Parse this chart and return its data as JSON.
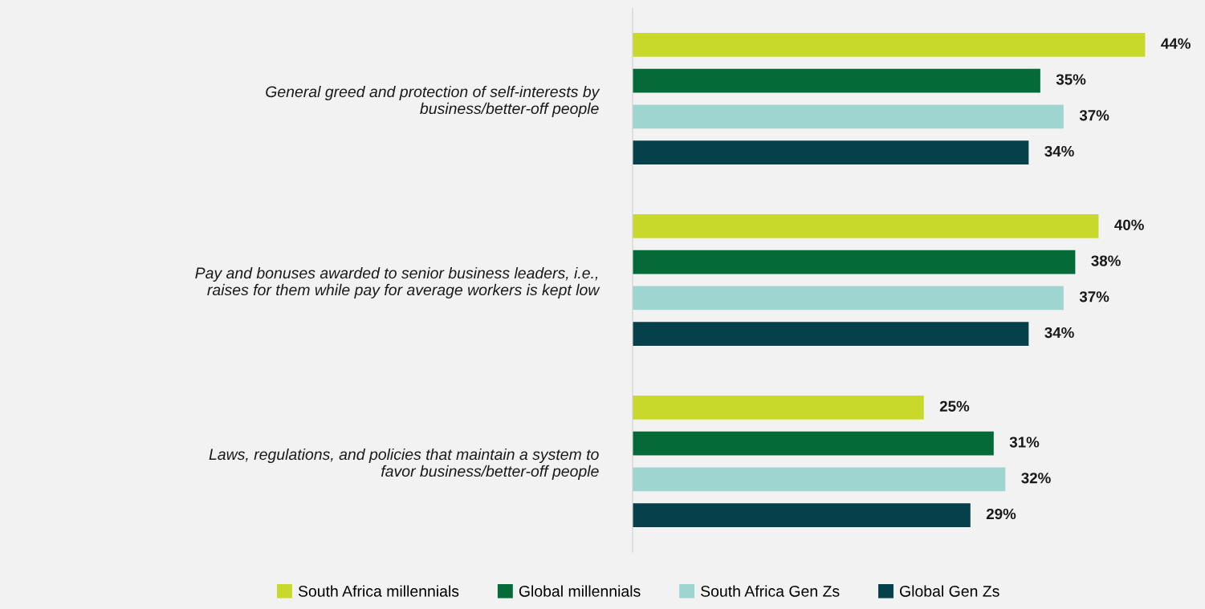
{
  "chart_data": {
    "type": "bar",
    "orientation": "horizontal",
    "categories": [
      "General greed and protection of self-interests by\nbusiness/better-off people",
      "Pay and bonuses awarded to senior business leaders, i.e.,\nraises for them while pay for average workers is kept low",
      "Laws, regulations, and policies that maintain a system to\nfavor business/better-off people"
    ],
    "series": [
      {
        "name": "South Africa millennials",
        "color": "#c8d92c",
        "values": [
          44,
          40,
          25
        ],
        "value_labels": [
          "44%",
          "40%",
          "25%"
        ]
      },
      {
        "name": "Global millennials",
        "color": "#046b38",
        "values": [
          35,
          38,
          31
        ],
        "value_labels": [
          "35%",
          "38%",
          "31%"
        ]
      },
      {
        "name": "South Africa Gen Zs",
        "color": "#9fd5d1",
        "values": [
          37,
          37,
          32
        ],
        "value_labels": [
          "37%",
          "37%",
          "32%"
        ]
      },
      {
        "name": "Global Gen Zs",
        "color": "#05404b",
        "values": [
          34,
          34,
          29
        ],
        "value_labels": [
          "34%",
          "34%",
          "29%"
        ]
      }
    ],
    "legend": "bottom",
    "grid": false
  }
}
